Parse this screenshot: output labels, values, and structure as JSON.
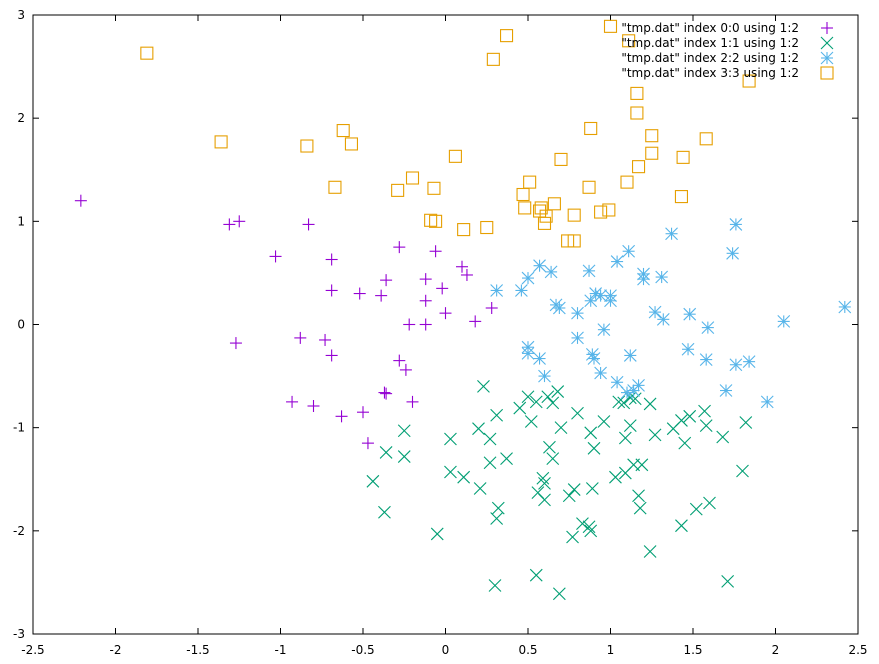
{
  "chart_data": {
    "type": "scatter",
    "xlim": [
      -2.5,
      2.5
    ],
    "ylim": [
      -3,
      3
    ],
    "x_ticks": [
      -2.5,
      -2,
      -1.5,
      -1,
      -0.5,
      0,
      0.5,
      1,
      1.5,
      2,
      2.5
    ],
    "y_ticks": [
      -3,
      -2,
      -1,
      0,
      1,
      2,
      3
    ],
    "grid": false,
    "legend_position": "top-right",
    "series": [
      {
        "name": "\"tmp.dat\" index 0:0 using 1:2",
        "marker": "plus",
        "color": "#9400d3",
        "points": [
          [
            -2.21,
            1.2
          ],
          [
            -1.31,
            0.97
          ],
          [
            -1.25,
            1.0
          ],
          [
            -0.83,
            0.97
          ],
          [
            -1.03,
            0.66
          ],
          [
            -0.69,
            0.63
          ],
          [
            -0.69,
            0.33
          ],
          [
            -0.52,
            0.3
          ],
          [
            -0.39,
            0.28
          ],
          [
            -0.36,
            0.43
          ],
          [
            -0.28,
            0.75
          ],
          [
            -0.12,
            0.44
          ],
          [
            -0.12,
            0.23
          ],
          [
            -0.06,
            0.71
          ],
          [
            -0.02,
            0.35
          ],
          [
            0.0,
            0.11
          ],
          [
            0.1,
            0.56
          ],
          [
            0.13,
            0.48
          ],
          [
            0.18,
            0.03
          ],
          [
            0.28,
            0.16
          ],
          [
            -0.22,
            0.0
          ],
          [
            -0.12,
            0.0
          ],
          [
            -1.27,
            -0.18
          ],
          [
            -0.88,
            -0.13
          ],
          [
            -0.73,
            -0.15
          ],
          [
            -0.69,
            -0.3
          ],
          [
            -0.28,
            -0.35
          ],
          [
            -0.24,
            -0.44
          ],
          [
            -0.37,
            -0.66
          ],
          [
            -0.36,
            -0.67
          ],
          [
            -0.93,
            -0.75
          ],
          [
            -0.8,
            -0.79
          ],
          [
            -0.63,
            -0.89
          ],
          [
            -0.5,
            -0.85
          ],
          [
            -0.2,
            -0.75
          ],
          [
            -0.47,
            -1.15
          ]
        ]
      },
      {
        "name": "\"tmp.dat\" index 1:1 using 1:2",
        "marker": "cross",
        "color": "#009e73",
        "points": [
          [
            0.23,
            -0.6
          ],
          [
            0.31,
            -0.88
          ],
          [
            0.5,
            -0.7
          ],
          [
            0.55,
            -0.75
          ],
          [
            0.62,
            -0.7
          ],
          [
            0.65,
            -0.76
          ],
          [
            0.68,
            -0.65
          ],
          [
            0.45,
            -0.81
          ],
          [
            0.8,
            -0.86
          ],
          [
            0.52,
            -0.94
          ],
          [
            0.7,
            -1.0
          ],
          [
            0.88,
            -1.05
          ],
          [
            0.9,
            -1.2
          ],
          [
            0.63,
            -1.19
          ],
          [
            0.65,
            -1.3
          ],
          [
            0.03,
            -1.11
          ],
          [
            0.2,
            -1.01
          ],
          [
            0.27,
            -1.11
          ],
          [
            0.37,
            -1.3
          ],
          [
            0.27,
            -1.34
          ],
          [
            0.03,
            -1.43
          ],
          [
            0.11,
            -1.48
          ],
          [
            0.21,
            -1.59
          ],
          [
            0.32,
            -1.78
          ],
          [
            0.31,
            -1.88
          ],
          [
            0.59,
            -1.49
          ],
          [
            0.6,
            -1.54
          ],
          [
            0.56,
            -1.63
          ],
          [
            0.6,
            -1.7
          ],
          [
            0.78,
            -1.6
          ],
          [
            0.75,
            -1.66
          ],
          [
            0.89,
            -1.59
          ],
          [
            0.83,
            -1.93
          ],
          [
            0.87,
            -1.96
          ],
          [
            0.88,
            -2.0
          ],
          [
            0.77,
            -2.06
          ],
          [
            0.96,
            -0.94
          ],
          [
            1.05,
            -0.75
          ],
          [
            1.08,
            -0.76
          ],
          [
            1.12,
            -0.71
          ],
          [
            1.15,
            -0.72
          ],
          [
            1.12,
            -0.98
          ],
          [
            1.09,
            -1.1
          ],
          [
            1.24,
            -0.77
          ],
          [
            1.27,
            -1.07
          ],
          [
            1.38,
            -1.01
          ],
          [
            1.43,
            -0.93
          ],
          [
            1.48,
            -0.89
          ],
          [
            1.57,
            -0.84
          ],
          [
            1.58,
            -0.98
          ],
          [
            1.68,
            -1.09
          ],
          [
            1.45,
            -1.15
          ],
          [
            1.03,
            -1.48
          ],
          [
            1.09,
            -1.44
          ],
          [
            1.14,
            -1.36
          ],
          [
            1.19,
            -1.36
          ],
          [
            1.17,
            -1.66
          ],
          [
            1.18,
            -1.78
          ],
          [
            1.52,
            -1.79
          ],
          [
            1.6,
            -1.73
          ],
          [
            1.24,
            -2.2
          ],
          [
            1.43,
            -1.95
          ],
          [
            1.71,
            -2.49
          ],
          [
            1.8,
            -1.42
          ],
          [
            1.82,
            -0.95
          ],
          [
            -0.05,
            -2.03
          ],
          [
            -0.44,
            -1.52
          ],
          [
            -0.37,
            -1.82
          ],
          [
            -0.36,
            -1.24
          ],
          [
            -0.25,
            -1.03
          ],
          [
            -0.25,
            -1.28
          ],
          [
            0.3,
            -2.53
          ],
          [
            0.55,
            -2.43
          ],
          [
            0.69,
            -2.61
          ]
        ]
      },
      {
        "name": "\"tmp.dat\" index 2:2 using 1:2",
        "marker": "star",
        "color": "#56b4e9",
        "points": [
          [
            0.31,
            0.33
          ],
          [
            0.46,
            0.33
          ],
          [
            0.5,
            0.45
          ],
          [
            0.57,
            0.57
          ],
          [
            0.64,
            0.51
          ],
          [
            0.67,
            0.19
          ],
          [
            0.69,
            0.16
          ],
          [
            0.8,
            0.11
          ],
          [
            0.87,
            0.52
          ],
          [
            0.88,
            0.23
          ],
          [
            0.91,
            0.3
          ],
          [
            0.94,
            0.28
          ],
          [
            1.0,
            0.28
          ],
          [
            1.0,
            0.23
          ],
          [
            1.04,
            0.61
          ],
          [
            1.11,
            0.71
          ],
          [
            1.2,
            0.49
          ],
          [
            1.2,
            0.44
          ],
          [
            1.27,
            0.12
          ],
          [
            1.31,
            0.46
          ],
          [
            1.32,
            0.05
          ],
          [
            1.37,
            0.88
          ],
          [
            1.48,
            0.1
          ],
          [
            1.59,
            -0.03
          ],
          [
            1.74,
            0.69
          ],
          [
            1.76,
            0.97
          ],
          [
            0.5,
            -0.22
          ],
          [
            0.5,
            -0.28
          ],
          [
            0.57,
            -0.33
          ],
          [
            0.6,
            -0.5
          ],
          [
            0.8,
            -0.13
          ],
          [
            0.89,
            -0.29
          ],
          [
            0.9,
            -0.33
          ],
          [
            0.94,
            -0.47
          ],
          [
            0.96,
            -0.05
          ],
          [
            1.04,
            -0.56
          ],
          [
            1.1,
            -0.66
          ],
          [
            1.12,
            -0.3
          ],
          [
            1.14,
            -0.64
          ],
          [
            1.17,
            -0.59
          ],
          [
            1.47,
            -0.24
          ],
          [
            1.58,
            -0.34
          ],
          [
            1.7,
            -0.64
          ],
          [
            1.76,
            -0.39
          ],
          [
            1.84,
            -0.36
          ],
          [
            1.95,
            -0.75
          ],
          [
            2.05,
            0.03
          ],
          [
            2.42,
            0.17
          ]
        ]
      },
      {
        "name": "\"tmp.dat\" index 3:3 using 1:2",
        "marker": "square",
        "color": "#e69f00",
        "points": [
          [
            -1.81,
            2.63
          ],
          [
            -1.36,
            1.77
          ],
          [
            -0.84,
            1.73
          ],
          [
            -0.62,
            1.88
          ],
          [
            -0.57,
            1.75
          ],
          [
            -0.67,
            1.33
          ],
          [
            -0.29,
            1.3
          ],
          [
            -0.2,
            1.42
          ],
          [
            -0.07,
            1.32
          ],
          [
            -0.09,
            1.01
          ],
          [
            -0.06,
            1.0
          ],
          [
            0.06,
            1.63
          ],
          [
            0.11,
            0.92
          ],
          [
            0.25,
            0.94
          ],
          [
            0.29,
            2.57
          ],
          [
            0.37,
            2.8
          ],
          [
            0.47,
            1.26
          ],
          [
            0.48,
            1.13
          ],
          [
            0.51,
            1.38
          ],
          [
            0.57,
            1.1
          ],
          [
            0.58,
            1.13
          ],
          [
            0.6,
            0.98
          ],
          [
            0.61,
            1.05
          ],
          [
            0.66,
            1.17
          ],
          [
            0.7,
            1.6
          ],
          [
            0.74,
            0.81
          ],
          [
            0.78,
            1.06
          ],
          [
            0.78,
            0.81
          ],
          [
            0.87,
            1.33
          ],
          [
            0.88,
            1.9
          ],
          [
            0.94,
            1.09
          ],
          [
            0.99,
            1.11
          ],
          [
            1.1,
            1.38
          ],
          [
            1.16,
            2.05
          ],
          [
            1.16,
            2.24
          ],
          [
            1.17,
            1.53
          ],
          [
            1.25,
            1.83
          ],
          [
            1.25,
            1.66
          ],
          [
            1.43,
            1.24
          ],
          [
            1.44,
            1.62
          ],
          [
            1.58,
            1.8
          ],
          [
            1.84,
            2.36
          ],
          [
            1.0,
            2.89
          ],
          [
            1.11,
            2.75
          ]
        ]
      }
    ]
  }
}
